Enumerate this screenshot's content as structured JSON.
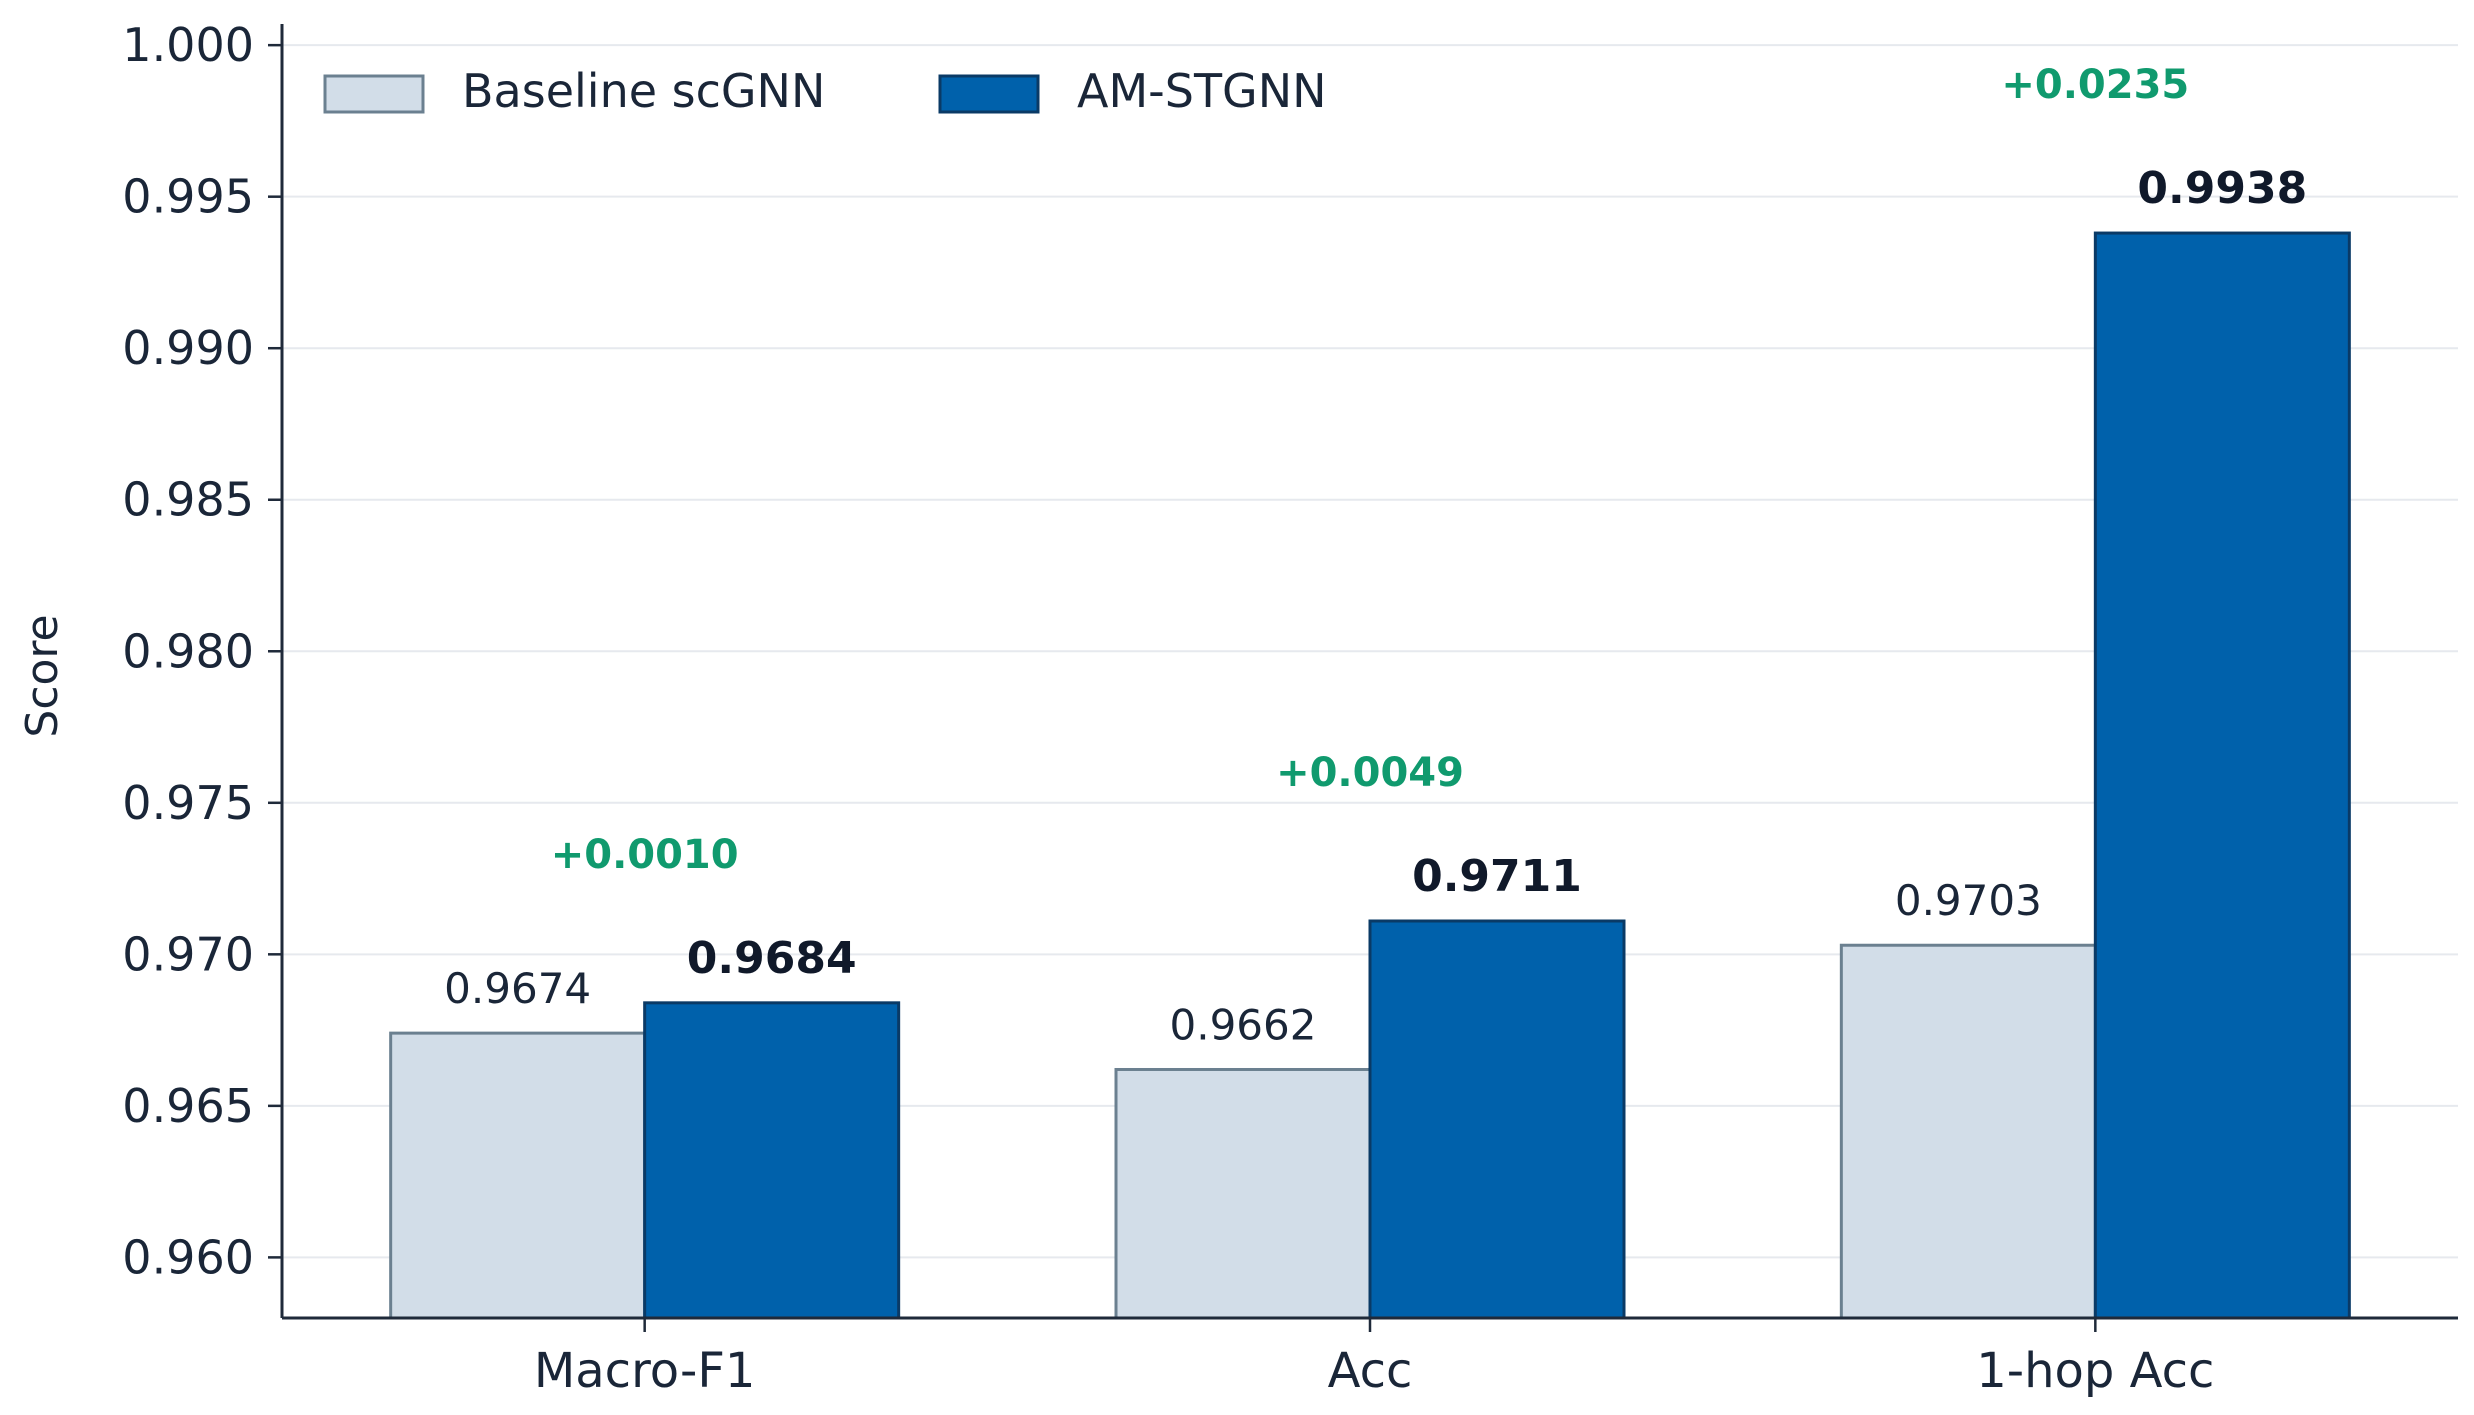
{
  "chart_data": {
    "type": "bar",
    "ylabel": "Score",
    "xlabel": "",
    "ylim": [
      0.958,
      1.0005
    ],
    "yticks": [
      0.96,
      0.965,
      0.97,
      0.975,
      0.98,
      0.985,
      0.99,
      0.995,
      1.0
    ],
    "ytick_labels": [
      "0.960",
      "0.965",
      "0.970",
      "0.975",
      "0.980",
      "0.985",
      "0.990",
      "0.995",
      "1.000"
    ],
    "grid": true,
    "legend_position": "top-left",
    "categories": [
      "Macro-F1",
      "Acc",
      "1-hop Acc"
    ],
    "series": [
      {
        "name": "Baseline scGNN",
        "values": [
          0.9674,
          0.9662,
          0.9703
        ],
        "labels": [
          "0.9674",
          "0.9662",
          "0.9703"
        ],
        "color": "#d2dde8",
        "edge_color": "#6b8090"
      },
      {
        "name": "AM-STGNN",
        "values": [
          0.9684,
          0.9711,
          0.9938
        ],
        "labels": [
          "0.9684",
          "0.9711",
          "0.9938"
        ],
        "color": "#0061ab",
        "edge_color": "#0a3a66"
      }
    ],
    "annotations": [
      "+0.0010",
      "+0.0049",
      "+0.0235"
    ],
    "annotation_color": "#109a6e"
  }
}
